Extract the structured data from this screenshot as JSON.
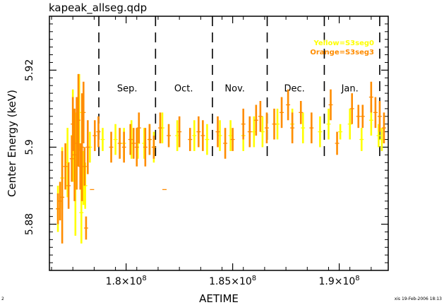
{
  "chart_data": {
    "type": "scatter",
    "title": "kapeak_allseg.qdp",
    "xlabel": "AETIME",
    "ylabel": "Center Energy  (keV)",
    "xlim": [
      176400000,
      192300000
    ],
    "ylim": [
      5.868,
      5.934
    ],
    "x_tick_values": [
      180000000,
      185000000,
      190000000
    ],
    "x_tick_labels": [
      "1.8×10",
      "1.85×10",
      "1.9×10"
    ],
    "x_tick_exponent": "8",
    "y_tick_values": [
      5.88,
      5.9,
      5.92
    ],
    "y_tick_labels": [
      "5.88",
      "5.9",
      "5.92"
    ],
    "grid": false,
    "legend_position": "top-right",
    "legend": [
      {
        "label": "Yellow=S3seg0",
        "color": "#ffff00"
      },
      {
        "label": "Orange=S3seg3",
        "color": "#ff8c00"
      }
    ],
    "month_boundaries": [
      178720000,
      181380000,
      184050000,
      186620000,
      189300000,
      191900000
    ],
    "months": [
      {
        "label": "Sep.",
        "x": 180050000
      },
      {
        "label": "Oct.",
        "x": 182700000
      },
      {
        "label": "Nov.",
        "x": 185100000
      },
      {
        "label": "Dec.",
        "x": 187900000
      },
      {
        "label": "Jan.",
        "x": 190500000
      }
    ],
    "series": [
      {
        "name": "S3seg0",
        "color": "#ffff00",
        "points": [
          [
            176800000,
            5.884,
            0.006
          ],
          [
            177000000,
            5.892,
            0.008
          ],
          [
            177250000,
            5.896,
            0.009
          ],
          [
            177500000,
            5.903,
            0.012
          ],
          [
            177620000,
            5.893,
            0.016
          ],
          [
            177700000,
            5.906,
            0.006
          ],
          [
            177800000,
            5.909,
            0.01
          ],
          [
            177900000,
            5.883,
            0.008
          ],
          [
            178000000,
            5.892,
            0.007
          ],
          [
            178080000,
            5.89,
            0.006
          ],
          [
            178300000,
            5.9,
            0.004
          ],
          [
            178900000,
            5.902,
            0.003
          ],
          [
            179500000,
            5.902,
            0.004
          ],
          [
            179900000,
            5.901,
            0.004
          ],
          [
            180250000,
            5.902,
            0.005
          ],
          [
            180550000,
            5.901,
            0.004
          ],
          [
            180850000,
            5.901,
            0.004
          ],
          [
            181100000,
            5.902,
            0.004
          ],
          [
            181300000,
            5.9,
            0.004
          ],
          [
            181700000,
            5.905,
            0.004
          ],
          [
            182400000,
            5.903,
            0.004
          ],
          [
            183200000,
            5.903,
            0.004
          ],
          [
            183800000,
            5.902,
            0.004
          ],
          [
            184400000,
            5.903,
            0.004
          ],
          [
            184900000,
            5.903,
            0.004
          ],
          [
            185500000,
            5.903,
            0.004
          ],
          [
            186000000,
            5.904,
            0.004
          ],
          [
            186400000,
            5.904,
            0.004
          ],
          [
            187100000,
            5.906,
            0.004
          ],
          [
            187800000,
            5.906,
            0.004
          ],
          [
            188300000,
            5.905,
            0.004
          ],
          [
            189100000,
            5.904,
            0.004
          ],
          [
            189500000,
            5.906,
            0.004
          ],
          [
            190050000,
            5.904,
            0.002
          ],
          [
            190500000,
            5.906,
            0.004
          ],
          [
            191050000,
            5.902,
            0.003
          ],
          [
            191500000,
            5.907,
            0.004
          ],
          [
            191850000,
            5.903,
            0.003
          ],
          [
            192000000,
            5.902,
            0.003
          ]
        ]
      },
      {
        "name": "S3seg3",
        "color": "#ff8c00",
        "points": [
          [
            176800000,
            5.884,
            0.004
          ],
          [
            176900000,
            5.886,
            0.005
          ],
          [
            177000000,
            5.887,
            0.012
          ],
          [
            177150000,
            5.895,
            0.006
          ],
          [
            177300000,
            5.89,
            0.006
          ],
          [
            177450000,
            5.897,
            0.006
          ],
          [
            177500000,
            5.906,
            0.007
          ],
          [
            177580000,
            5.898,
            0.012
          ],
          [
            177680000,
            5.901,
            0.012
          ],
          [
            177760000,
            5.907,
            0.012
          ],
          [
            177850000,
            5.895,
            0.006
          ],
          [
            177930000,
            5.9,
            0.014
          ],
          [
            178000000,
            5.909,
            0.008
          ],
          [
            178050000,
            5.895,
            0.005
          ],
          [
            178120000,
            5.879,
            0.003
          ],
          [
            178200000,
            5.9,
            0.007
          ],
          [
            178400000,
            5.889,
            0.0
          ],
          [
            178530000,
            5.903,
            0.004
          ],
          [
            178700000,
            5.904,
            0.004
          ],
          [
            179300000,
            5.9,
            0.004
          ],
          [
            179700000,
            5.901,
            0.004
          ],
          [
            179900000,
            5.9,
            0.004
          ],
          [
            180200000,
            5.902,
            0.004
          ],
          [
            180350000,
            5.901,
            0.004
          ],
          [
            180500000,
            5.9,
            0.005
          ],
          [
            180600000,
            5.905,
            0.004
          ],
          [
            180900000,
            5.9,
            0.005
          ],
          [
            181100000,
            5.902,
            0.004
          ],
          [
            181300000,
            5.9,
            0.003
          ],
          [
            181600000,
            5.905,
            0.004
          ],
          [
            181800000,
            5.889,
            0.0
          ],
          [
            182000000,
            5.903,
            0.003
          ],
          [
            182500000,
            5.904,
            0.004
          ],
          [
            183000000,
            5.902,
            0.003
          ],
          [
            183400000,
            5.904,
            0.004
          ],
          [
            183600000,
            5.903,
            0.004
          ],
          [
            184300000,
            5.904,
            0.004
          ],
          [
            184650000,
            5.901,
            0.004
          ],
          [
            185000000,
            5.902,
            0.003
          ],
          [
            185500000,
            5.906,
            0.004
          ],
          [
            185800000,
            5.904,
            0.004
          ],
          [
            186100000,
            5.907,
            0.004
          ],
          [
            186300000,
            5.908,
            0.004
          ],
          [
            186600000,
            5.905,
            0.004
          ],
          [
            186950000,
            5.906,
            0.004
          ],
          [
            187300000,
            5.909,
            0.004
          ],
          [
            187600000,
            5.911,
            0.004
          ],
          [
            187800000,
            5.905,
            0.004
          ],
          [
            188200000,
            5.909,
            0.003
          ],
          [
            188700000,
            5.905,
            0.004
          ],
          [
            189600000,
            5.911,
            0.004
          ],
          [
            189900000,
            5.901,
            0.003
          ],
          [
            190600000,
            5.91,
            0.004
          ],
          [
            190900000,
            5.908,
            0.003
          ],
          [
            191100000,
            5.908,
            0.003
          ],
          [
            191500000,
            5.913,
            0.004
          ],
          [
            191700000,
            5.909,
            0.004
          ],
          [
            191900000,
            5.908,
            0.004
          ],
          [
            192100000,
            5.905,
            0.004
          ]
        ]
      }
    ]
  },
  "footer": {
    "left": "2",
    "right": "xis  19-Feb-2006 18:13"
  }
}
